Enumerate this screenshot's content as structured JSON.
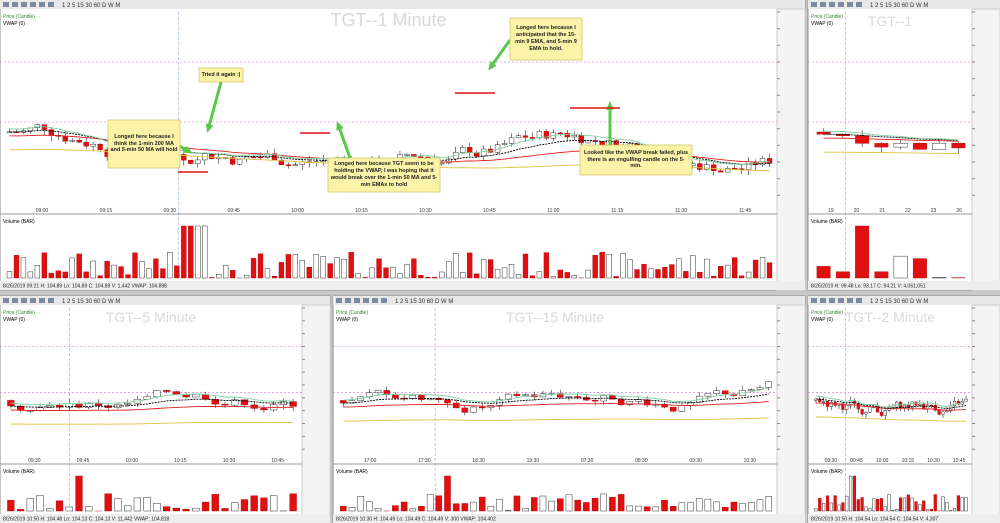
{
  "toolbar": "1 2 5 15 30 60 D W M",
  "panels": [
    {
      "title": "TGT--1 Minute",
      "price_label": "Price (Candle)",
      "vwap_label": "VWAP (0)",
      "volume_label": "Volume (BAR)",
      "status": "8/26/2019 09:21 H: 104.89 Lo: 104.89 C: 104.89 V: 1,442 VWAP: 104.898",
      "times": [
        "09:00",
        "09:15",
        "09:30",
        "09:45",
        "10:00",
        "10:15",
        "10:30",
        "10:45",
        "11:00",
        "11:15",
        "11:30",
        "11:45"
      ]
    },
    {
      "title": "TGT--1",
      "price_label": "Price (Candle)",
      "vwap_label": "VWAP (0)",
      "volume_label": "Volume (BAR)",
      "status": "8/26/2019 H: 99.48 Lo: 93.17 C: 94.21 V: 4,061,051",
      "times": [
        "19",
        "20",
        "21",
        "22",
        "23",
        "26"
      ]
    },
    {
      "title": "TGT--5 Minute",
      "price_label": "Price (Candle)",
      "vwap_label": "VWAP (0)",
      "volume_label": "Volume (BAR)",
      "status": "8/26/2019 10:50 H: 104.48 Lo: 104.13 C: 104.13 V: 11,442 VWAP: 104.818",
      "times": [
        "09:30",
        "09:45",
        "10:00",
        "10:15",
        "10:30",
        "10:45"
      ]
    },
    {
      "title": "TGT--15 Minute",
      "price_label": "Price (Candle)",
      "vwap_label": "VWAP (0)",
      "volume_label": "Volume (BAR)",
      "status": "8/26/2019 10:30 H: 104.49 Lo: 104.49 C: 104.49 V: 300 VWAP: 104.402",
      "times": [
        "17:00",
        "17:30",
        "18:30",
        "19:30",
        "07:30",
        "08:30",
        "09:30",
        "10:30"
      ]
    },
    {
      "title": "TGT--2 Minute",
      "price_label": "Price (Candle)",
      "vwap_label": "VWAP (0)",
      "volume_label": "Volume (BAR)",
      "status": "8/26/2019 10:50 H: 104.54 Lo: 104.54 C: 104.54 V: 4,307",
      "times": [
        "09:30",
        "09:45",
        "10:00",
        "10:15",
        "10:30",
        "10:45"
      ]
    }
  ],
  "annotations": [
    "Longed here because I think the 1-min 200 MA and 5-min 50 MA will hold",
    "Tried it again :|",
    "Longed here because TGT seem to be holding the VWAP, I was hoping that it would break over the 1-min 50 MA and 5-min EMAs to hold",
    "Longed here because I anticipated that the 15-min 9 EMA, and 5-min 9 EMA to hold.",
    "Looked like the VWAP break failed, plus there is an engulfing candle on the 5-min."
  ]
}
